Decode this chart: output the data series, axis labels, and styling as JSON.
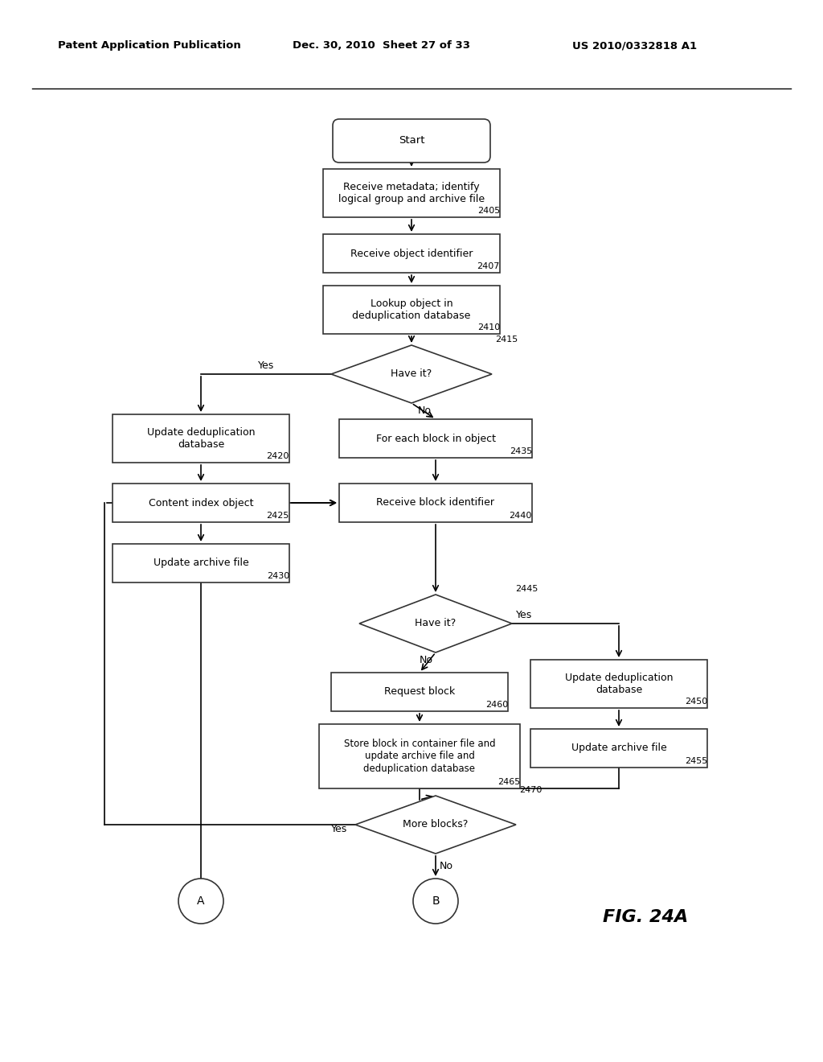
{
  "title_left": "Patent Application Publication",
  "title_mid": "Dec. 30, 2010  Sheet 27 of 33",
  "title_right": "US 2010/0332818 A1",
  "fig_label": "FIG. 24A",
  "background_color": "#ffffff"
}
